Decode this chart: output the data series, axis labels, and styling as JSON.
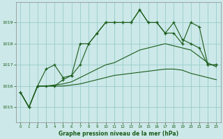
{
  "title": "Graphe pression niveau de la mer (hPa)",
  "bg_color": "#cce8e8",
  "grid_color": "#99cccc",
  "line_color": "#1a5c1a",
  "xlim": [
    -0.5,
    23.5
  ],
  "ylim": [
    1014.3,
    1019.95
  ],
  "yticks": [
    1015,
    1016,
    1017,
    1018,
    1019
  ],
  "xticks": [
    0,
    1,
    2,
    3,
    4,
    5,
    6,
    7,
    8,
    9,
    10,
    11,
    12,
    13,
    14,
    15,
    16,
    17,
    18,
    19,
    20,
    21,
    22,
    23
  ],
  "series": {
    "line1": {
      "x": [
        0,
        1,
        2,
        3,
        4,
        5,
        6,
        7,
        8,
        9,
        10,
        11,
        12,
        13,
        14,
        15,
        16,
        17,
        18,
        19,
        20,
        21,
        22,
        23
      ],
      "y": [
        1015.7,
        1015.0,
        1016.0,
        1016.0,
        1016.0,
        1016.3,
        1016.5,
        1018.0,
        1018.0,
        1018.5,
        1019.0,
        1019.0,
        1019.0,
        1019.0,
        1019.6,
        1019.0,
        1019.0,
        1018.5,
        1018.5,
        1018.0,
        1019.0,
        1018.8,
        1017.0,
        1017.0
      ],
      "marker": "+"
    },
    "line2": {
      "x": [
        0,
        1,
        2,
        3,
        4,
        5,
        6,
        7,
        8,
        9,
        10,
        11,
        12,
        13,
        14,
        15,
        16,
        17,
        18,
        19,
        20,
        21,
        22,
        23
      ],
      "y": [
        1015.7,
        1015.0,
        1016.0,
        1016.8,
        1017.0,
        1016.4,
        1016.5,
        1017.0,
        1018.0,
        1018.5,
        1019.0,
        1019.0,
        1019.0,
        1019.0,
        1019.6,
        1019.0,
        1019.0,
        1018.5,
        1019.0,
        1018.2,
        1018.0,
        1017.8,
        1017.0,
        1017.0
      ],
      "marker": "+"
    },
    "line3": {
      "x": [
        0,
        1,
        2,
        3,
        4,
        5,
        6,
        7,
        8,
        9,
        10,
        11,
        12,
        13,
        14,
        15,
        16,
        17,
        18,
        19,
        20,
        21,
        22,
        23
      ],
      "y": [
        1015.7,
        1015.0,
        1016.0,
        1016.0,
        1016.05,
        1016.1,
        1016.2,
        1016.4,
        1016.6,
        1016.8,
        1017.0,
        1017.1,
        1017.3,
        1017.5,
        1017.7,
        1017.8,
        1017.9,
        1018.0,
        1017.9,
        1017.8,
        1017.7,
        1017.4,
        1017.1,
        1016.9
      ],
      "marker": null
    },
    "line4": {
      "x": [
        0,
        1,
        2,
        3,
        4,
        5,
        6,
        7,
        8,
        9,
        10,
        11,
        12,
        13,
        14,
        15,
        16,
        17,
        18,
        19,
        20,
        21,
        22,
        23
      ],
      "y": [
        1015.7,
        1015.0,
        1016.0,
        1016.0,
        1016.0,
        1016.0,
        1016.05,
        1016.1,
        1016.2,
        1016.3,
        1016.4,
        1016.5,
        1016.55,
        1016.6,
        1016.65,
        1016.7,
        1016.75,
        1016.8,
        1016.8,
        1016.75,
        1016.6,
        1016.5,
        1016.4,
        1016.3
      ],
      "marker": null
    }
  }
}
